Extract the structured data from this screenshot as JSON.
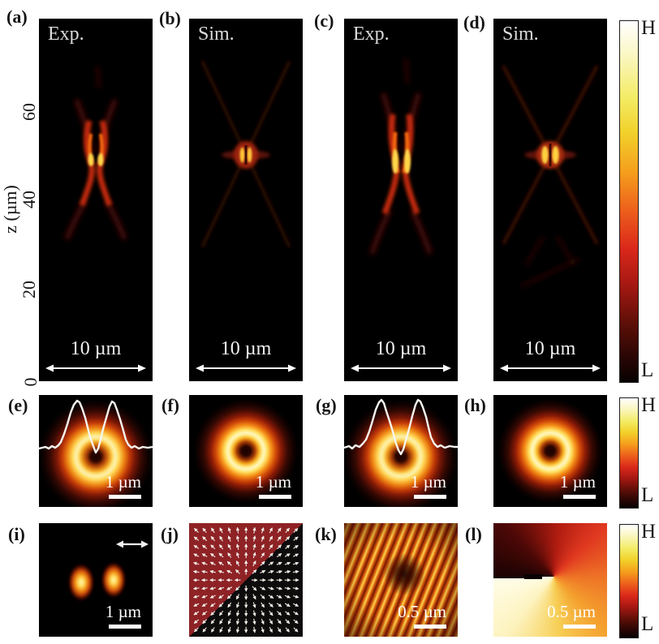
{
  "axis": {
    "label": "z (µm)",
    "ticks": [
      "60",
      "40",
      "20",
      "0"
    ]
  },
  "panels": {
    "a": {
      "label": "(a)",
      "caption": "Exp.",
      "scalebar": "10 µm"
    },
    "b": {
      "label": "(b)",
      "caption": "Sim.",
      "scalebar": "10 µm"
    },
    "c": {
      "label": "(c)",
      "caption": "Exp.",
      "scalebar": "10 µm"
    },
    "d": {
      "label": "(d)",
      "caption": "Sim.",
      "scalebar": "10 µm"
    },
    "e": {
      "label": "(e)",
      "scalebar": "1 µm"
    },
    "f": {
      "label": "(f)",
      "scalebar": "1 µm"
    },
    "g": {
      "label": "(g)",
      "scalebar": "1 µm"
    },
    "h": {
      "label": "(h)",
      "scalebar": "1 µm"
    },
    "i": {
      "label": "(i)",
      "scalebar": "1 µm"
    },
    "j": {
      "label": "(j)"
    },
    "k": {
      "label": "(k)",
      "scalebar": "0.5 µm"
    },
    "l": {
      "label": "(l)",
      "scalebar": "0.5 µm"
    }
  },
  "colorbars": [
    {
      "high": "H",
      "low": "L"
    },
    {
      "high": "H",
      "low": "L"
    },
    {
      "high": "H",
      "low": "L"
    }
  ],
  "colors": {
    "colormap_high": "#ffffff",
    "colormap_mid": "#f59d1c",
    "colormap_low": "#000000",
    "vector_bg_upper": "#8e2225",
    "vector_bg_lower": "#0d0b0b",
    "profile_line": "#f5f5f0"
  }
}
